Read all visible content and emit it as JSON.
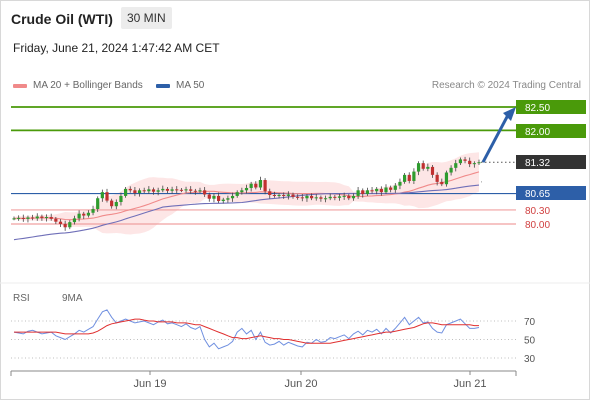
{
  "header": {
    "instrument": "Crude Oil (WTI)",
    "timeframe": "30 MIN",
    "datetime": "Friday, June 21, 2024 1:47:42 AM CET",
    "credit": "Research © 2024 Trading Central"
  },
  "colors": {
    "green_level": "#4a9a0a",
    "blue_level": "#2d5fa8",
    "red_level": "#f0a0a0",
    "candle_up": "#2e9c2e",
    "candle_down": "#c03030",
    "ma20": "#f08a8a",
    "ma50": "#6f6fb8",
    "bollinger_fill": "#fde2e2",
    "rsi": "#7090e0",
    "rsi_ma": "#e03030",
    "current_price_bg": "#333333"
  },
  "chart_data": [
    {
      "type": "candlestick",
      "legend": [
        {
          "name": "MA 20 + Bollinger Bands",
          "color": "#f08a8a"
        },
        {
          "name": "MA 50",
          "color": "#2d5fa8"
        }
      ],
      "levels": [
        {
          "value": "82.50",
          "kind": "target",
          "color": "#4a9a0a",
          "boxed": true
        },
        {
          "value": "82.00",
          "kind": "target",
          "color": "#4a9a0a",
          "boxed": true
        },
        {
          "value": "81.32",
          "kind": "current",
          "color": "#333333",
          "boxed": true
        },
        {
          "value": "80.65",
          "kind": "pivot",
          "color": "#2d5fa8",
          "boxed": true
        },
        {
          "value": "80.30",
          "kind": "support",
          "color": "#d04040",
          "boxed": false
        },
        {
          "value": "80.00",
          "kind": "support",
          "color": "#d04040",
          "boxed": false
        }
      ],
      "x_labels": [
        "Jun 19",
        "Jun 20",
        "Jun 21"
      ],
      "close": [
        80.12,
        80.13,
        80.11,
        80.14,
        80.12,
        80.16,
        80.13,
        80.15,
        80.11,
        80.05,
        80.0,
        79.93,
        80.04,
        80.12,
        80.22,
        80.18,
        80.24,
        80.32,
        80.55,
        80.68,
        80.5,
        80.38,
        80.47,
        80.6,
        80.75,
        80.72,
        80.66,
        80.72,
        80.7,
        80.74,
        80.69,
        80.72,
        80.75,
        80.71,
        80.74,
        80.73,
        80.72,
        80.74,
        80.71,
        80.7,
        80.72,
        80.63,
        80.54,
        80.6,
        80.49,
        80.52,
        80.55,
        80.6,
        80.68,
        80.72,
        80.77,
        80.86,
        80.78,
        80.94,
        80.7,
        80.62,
        80.6,
        80.62,
        80.6,
        80.63,
        80.58,
        80.57,
        80.55,
        80.6,
        80.55,
        80.57,
        80.54,
        80.55,
        80.58,
        80.56,
        80.59,
        80.6,
        80.55,
        80.6,
        80.72,
        80.64,
        80.72,
        80.7,
        80.75,
        80.68,
        80.78,
        80.73,
        80.82,
        80.9,
        81.05,
        80.92,
        81.12,
        81.3,
        81.18,
        81.22,
        81.05,
        80.9,
        80.85,
        81.1,
        81.2,
        81.3,
        81.38,
        81.35,
        81.28,
        81.3,
        81.32
      ]
    },
    {
      "type": "line",
      "title": "RSI",
      "series": [
        {
          "name": "RSI",
          "color": "#7090e0"
        },
        {
          "name": "9MA",
          "color": "#e03030"
        }
      ],
      "y_ticks": [
        70,
        50,
        30
      ],
      "rsi": [
        58,
        57,
        56,
        59,
        60,
        58,
        56,
        57,
        58,
        54,
        52,
        50,
        53,
        56,
        60,
        58,
        61,
        64,
        72,
        80,
        82,
        74,
        68,
        70,
        72,
        70,
        68,
        69,
        70,
        68,
        66,
        69,
        71,
        67,
        68,
        66,
        64,
        67,
        63,
        61,
        64,
        50,
        42,
        46,
        40,
        42,
        44,
        48,
        58,
        62,
        56,
        60,
        50,
        58,
        47,
        44,
        45,
        48,
        44,
        47,
        45,
        43,
        42,
        47,
        46,
        50,
        47,
        48,
        52,
        51,
        53,
        55,
        51,
        56,
        59,
        55,
        60,
        58,
        61,
        56,
        62,
        57,
        62,
        68,
        74,
        66,
        70,
        74,
        68,
        69,
        62,
        58,
        57,
        66,
        68,
        70,
        72,
        67,
        62,
        62,
        63
      ],
      "ma9": [
        58,
        58,
        58,
        58,
        58,
        58,
        58,
        58,
        58,
        58,
        57,
        56,
        56,
        56,
        56,
        56,
        56,
        57,
        59,
        62,
        65,
        67,
        68,
        69,
        70,
        71,
        72,
        72,
        71,
        70,
        70,
        69,
        69,
        69,
        69,
        68,
        68,
        68,
        67,
        66,
        66,
        64,
        62,
        60,
        58,
        56,
        54,
        52,
        52,
        51,
        51,
        52,
        53,
        54,
        53,
        52,
        51,
        51,
        50,
        50,
        49,
        48,
        47,
        46,
        46,
        46,
        46,
        46,
        46,
        47,
        48,
        49,
        50,
        51,
        52,
        53,
        54,
        55,
        56,
        57,
        58,
        58,
        59,
        60,
        61,
        62,
        63,
        65,
        67,
        68,
        68,
        67,
        66,
        66,
        66,
        66,
        66,
        66,
        66,
        65,
        65
      ]
    }
  ]
}
